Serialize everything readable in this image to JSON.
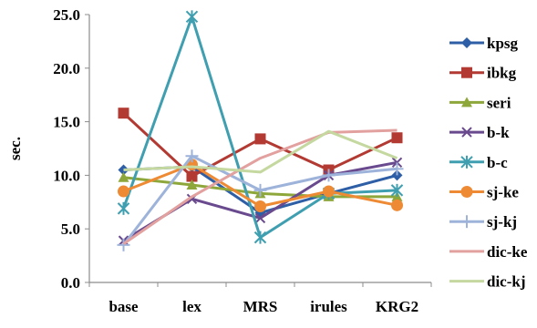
{
  "chart_data": {
    "type": "line",
    "ylabel": "sec.",
    "ylim": [
      0,
      25
    ],
    "yticks": [
      "0.0",
      "5.0",
      "10.0",
      "15.0",
      "20.0",
      "25.0"
    ],
    "yticks_values": [
      0,
      5,
      10,
      15,
      20,
      25
    ],
    "categories": [
      "base",
      "lex",
      "MRS",
      "irules",
      "KRG2"
    ],
    "grid": false,
    "legend_position": "right",
    "series": [
      {
        "name": "kpsg",
        "color": "#2E5FA6",
        "marker": "diamond",
        "values": [
          10.5,
          10.8,
          6.5,
          8.3,
          10.0
        ]
      },
      {
        "name": "ibkg",
        "color": "#B23A32",
        "marker": "square",
        "values": [
          15.8,
          9.9,
          13.4,
          10.5,
          13.5
        ]
      },
      {
        "name": "seri",
        "color": "#8EA73A",
        "marker": "triangle",
        "values": [
          9.8,
          9.1,
          8.3,
          8.0,
          8.0
        ]
      },
      {
        "name": "b-k",
        "color": "#6A4A8E",
        "marker": "x",
        "values": [
          3.9,
          7.8,
          6.0,
          10.0,
          11.2
        ]
      },
      {
        "name": "b-c",
        "color": "#3F9FB0",
        "marker": "asterisk",
        "values": [
          6.9,
          24.8,
          4.2,
          8.3,
          8.6
        ]
      },
      {
        "name": "sj-ke",
        "color": "#EE8A34",
        "marker": "circle",
        "values": [
          8.5,
          11.0,
          7.1,
          8.5,
          7.2
        ]
      },
      {
        "name": "sj-kj",
        "color": "#9EB3DA",
        "marker": "plus",
        "values": [
          3.5,
          11.8,
          8.6,
          10.0,
          10.6
        ]
      },
      {
        "name": "dic-ke",
        "color": "#E2A09E",
        "marker": "none",
        "values": [
          3.6,
          8.0,
          11.6,
          14.0,
          14.2
        ]
      },
      {
        "name": "dic-kj",
        "color": "#C4D8A0",
        "marker": "none",
        "values": [
          10.5,
          10.8,
          10.3,
          14.1,
          11.6
        ]
      }
    ]
  }
}
